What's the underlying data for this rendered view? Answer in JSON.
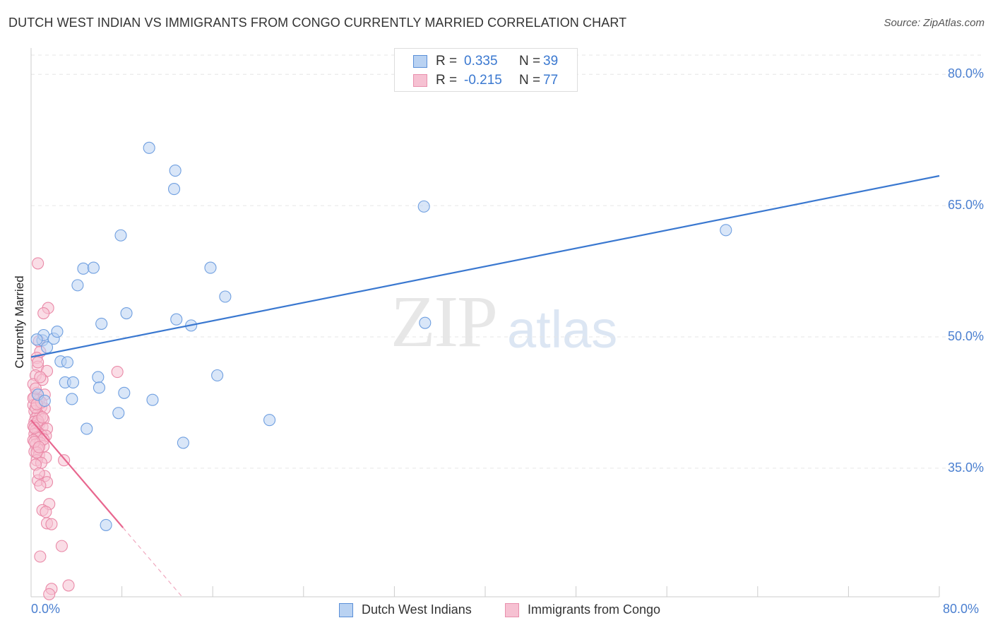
{
  "title": "DUTCH WEST INDIAN VS IMMIGRANTS FROM CONGO CURRENTLY MARRIED CORRELATION CHART",
  "source": "Source: ZipAtlas.com",
  "watermark": {
    "part1": "ZIP",
    "part2": "atlas"
  },
  "colors": {
    "blue": "#3a78d0",
    "blue_fill": "#b9d2f2",
    "pink": "#e8678f",
    "pink_fill": "#f6c1d2",
    "grid": "#e6e6e6"
  },
  "stats": [
    {
      "r_label": "R =",
      "r_value": "0.335",
      "n_label": "N =",
      "n_value": "39"
    },
    {
      "r_label": "R =",
      "r_value": "-0.215",
      "n_label": "N =",
      "n_value": "77"
    }
  ],
  "legend": [
    "Dutch West Indians",
    "Immigrants from Congo"
  ],
  "chart_data": {
    "type": "scatter",
    "title": "DUTCH WEST INDIAN VS IMMIGRANTS FROM CONGO CURRENTLY MARRIED CORRELATION CHART",
    "xlabel": "",
    "ylabel": "Currently Married",
    "xlim": [
      0,
      80
    ],
    "ylim": [
      20.3,
      82.2
    ],
    "y_ticks": [
      35,
      50,
      65,
      80
    ],
    "y_tick_labels": [
      "35.0%",
      "50.0%",
      "65.0%",
      "80.0%"
    ],
    "x_tick_labels": [
      "0.0%",
      "80.0%"
    ],
    "grid": true,
    "legend_position": "bottom-center",
    "series": [
      {
        "name": "Dutch West Indians",
        "r": 0.335,
        "n": 39,
        "trend": {
          "x": [
            0,
            80
          ],
          "y": [
            47.7,
            68.4
          ],
          "dashed_from": null
        },
        "points": [
          [
            1.0,
            49.6
          ],
          [
            1.1,
            50.2
          ],
          [
            1.4,
            48.8
          ],
          [
            2.0,
            49.8
          ],
          [
            2.3,
            50.6
          ],
          [
            2.6,
            47.2
          ],
          [
            3.2,
            47.1
          ],
          [
            3.0,
            44.8
          ],
          [
            3.7,
            44.8
          ],
          [
            3.6,
            42.9
          ],
          [
            4.1,
            55.9
          ],
          [
            4.6,
            57.8
          ],
          [
            5.5,
            57.9
          ],
          [
            4.9,
            39.5
          ],
          [
            5.9,
            45.4
          ],
          [
            6.0,
            44.2
          ],
          [
            6.2,
            51.5
          ],
          [
            6.6,
            28.5
          ],
          [
            7.7,
            41.3
          ],
          [
            7.9,
            61.6
          ],
          [
            8.2,
            43.6
          ],
          [
            8.4,
            52.7
          ],
          [
            10.4,
            71.6
          ],
          [
            10.7,
            42.8
          ],
          [
            12.6,
            66.9
          ],
          [
            12.7,
            69.0
          ],
          [
            12.8,
            52.0
          ],
          [
            13.4,
            37.9
          ],
          [
            14.1,
            51.3
          ],
          [
            15.8,
            57.9
          ],
          [
            16.4,
            45.6
          ],
          [
            17.1,
            54.6
          ],
          [
            21.0,
            40.5
          ],
          [
            34.7,
            51.6
          ],
          [
            34.6,
            64.9
          ],
          [
            61.2,
            62.2
          ],
          [
            0.5,
            49.7
          ],
          [
            0.6,
            43.4
          ],
          [
            1.2,
            42.7
          ]
        ]
      },
      {
        "name": "Immigrants from Congo",
        "r": -0.215,
        "n": 77,
        "trend": {
          "x": [
            0,
            13.3
          ],
          "y": [
            40.5,
            20.3
          ],
          "dashed_from": 8.1
        },
        "points": [
          [
            0.6,
            58.4
          ],
          [
            1.5,
            53.3
          ],
          [
            1.1,
            52.7
          ],
          [
            0.7,
            49.5
          ],
          [
            0.8,
            48.3
          ],
          [
            0.5,
            47.6
          ],
          [
            0.6,
            46.6
          ],
          [
            1.4,
            46.1
          ],
          [
            0.4,
            45.6
          ],
          [
            1.0,
            45.1
          ],
          [
            0.2,
            44.6
          ],
          [
            0.5,
            43.6
          ],
          [
            1.2,
            43.4
          ],
          [
            0.3,
            43.1
          ],
          [
            0.7,
            42.8
          ],
          [
            0.2,
            42.2
          ],
          [
            0.9,
            42.0
          ],
          [
            1.2,
            41.8
          ],
          [
            0.3,
            41.5
          ],
          [
            0.6,
            41.2
          ],
          [
            0.8,
            40.9
          ],
          [
            0.4,
            40.7
          ],
          [
            1.1,
            40.6
          ],
          [
            0.3,
            40.3
          ],
          [
            0.5,
            40.1
          ],
          [
            0.7,
            40.0
          ],
          [
            0.2,
            39.8
          ],
          [
            1.0,
            39.7
          ],
          [
            1.4,
            39.5
          ],
          [
            0.4,
            39.3
          ],
          [
            0.6,
            39.1
          ],
          [
            0.3,
            38.9
          ],
          [
            0.9,
            38.8
          ],
          [
            1.3,
            38.7
          ],
          [
            0.5,
            38.5
          ],
          [
            0.2,
            38.2
          ],
          [
            0.8,
            37.9
          ],
          [
            0.4,
            37.7
          ],
          [
            1.1,
            37.5
          ],
          [
            0.6,
            37.2
          ],
          [
            0.3,
            36.9
          ],
          [
            0.7,
            36.5
          ],
          [
            1.3,
            36.2
          ],
          [
            0.5,
            35.9
          ],
          [
            0.9,
            35.6
          ],
          [
            2.9,
            35.9
          ],
          [
            0.4,
            35.4
          ],
          [
            1.2,
            34.1
          ],
          [
            0.6,
            33.6
          ],
          [
            1.4,
            33.4
          ],
          [
            0.8,
            33.0
          ],
          [
            1.6,
            30.9
          ],
          [
            1.0,
            30.2
          ],
          [
            1.3,
            30.0
          ],
          [
            1.4,
            28.7
          ],
          [
            1.8,
            28.6
          ],
          [
            2.7,
            26.1
          ],
          [
            0.8,
            24.9
          ],
          [
            3.3,
            21.6
          ],
          [
            1.8,
            21.2
          ],
          [
            1.6,
            20.6
          ],
          [
            7.6,
            46.0
          ],
          [
            0.2,
            43.0
          ],
          [
            0.4,
            41.9
          ],
          [
            0.6,
            40.4
          ],
          [
            0.3,
            39.6
          ],
          [
            0.5,
            36.8
          ],
          [
            0.7,
            34.4
          ],
          [
            0.9,
            42.5
          ],
          [
            1.1,
            38.3
          ],
          [
            0.4,
            44.1
          ],
          [
            0.6,
            47.1
          ],
          [
            0.8,
            45.4
          ],
          [
            0.3,
            38.0
          ],
          [
            1.0,
            40.8
          ],
          [
            0.5,
            42.3
          ],
          [
            0.7,
            37.4
          ]
        ]
      }
    ]
  }
}
